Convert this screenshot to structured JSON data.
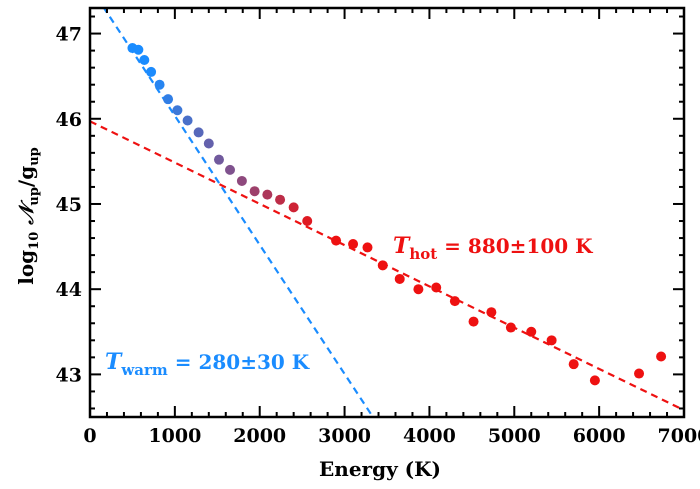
{
  "chart_data": {
    "type": "scatter",
    "xlabel": "Energy (K)",
    "ylabel": {
      "prefix": "log",
      "log_sub": "10",
      "script_n": "𝒩",
      "n_sub": "up",
      "slash": "/g",
      "g_sub": "up"
    },
    "xlim": [
      0,
      7000
    ],
    "ylim": [
      42.5,
      47.3
    ],
    "x_ticks": [
      0,
      1000,
      2000,
      3000,
      4000,
      5000,
      6000,
      7000
    ],
    "y_ticks": [
      43,
      44,
      45,
      46,
      47
    ],
    "grid": false,
    "points": [
      {
        "x": 500,
        "y": 46.83
      },
      {
        "x": 570,
        "y": 46.81
      },
      {
        "x": 640,
        "y": 46.69
      },
      {
        "x": 720,
        "y": 46.55
      },
      {
        "x": 820,
        "y": 46.4
      },
      {
        "x": 920,
        "y": 46.23
      },
      {
        "x": 1030,
        "y": 46.1
      },
      {
        "x": 1150,
        "y": 45.98
      },
      {
        "x": 1280,
        "y": 45.84
      },
      {
        "x": 1400,
        "y": 45.71
      },
      {
        "x": 1520,
        "y": 45.52
      },
      {
        "x": 1650,
        "y": 45.4
      },
      {
        "x": 1790,
        "y": 45.27
      },
      {
        "x": 1940,
        "y": 45.15
      },
      {
        "x": 2090,
        "y": 45.11
      },
      {
        "x": 2240,
        "y": 45.05
      },
      {
        "x": 2400,
        "y": 44.96
      },
      {
        "x": 2560,
        "y": 44.8
      },
      {
        "x": 2900,
        "y": 44.57
      },
      {
        "x": 3100,
        "y": 44.53
      },
      {
        "x": 3270,
        "y": 44.49
      },
      {
        "x": 3450,
        "y": 44.28
      },
      {
        "x": 3650,
        "y": 44.12
      },
      {
        "x": 3870,
        "y": 44.0
      },
      {
        "x": 4080,
        "y": 44.02
      },
      {
        "x": 4300,
        "y": 43.86
      },
      {
        "x": 4520,
        "y": 43.62
      },
      {
        "x": 4730,
        "y": 43.73
      },
      {
        "x": 4960,
        "y": 43.55
      },
      {
        "x": 5200,
        "y": 43.5
      },
      {
        "x": 5440,
        "y": 43.4
      },
      {
        "x": 5700,
        "y": 43.12
      },
      {
        "x": 5950,
        "y": 42.93
      },
      {
        "x": 6470,
        "y": 43.01
      },
      {
        "x": 6730,
        "y": 43.21
      }
    ],
    "color_gradient": {
      "start": "#1a8cff",
      "end": "#ee1111",
      "x_range": [
        700,
        2700
      ]
    },
    "fits": [
      {
        "name": "warm",
        "color": "#1a8cff",
        "x": [
          0,
          3400
        ],
        "y": [
          47.55,
          42.4
        ],
        "label_symbol": "T",
        "label_sub": "warm",
        "label_value": " = 280±30 K"
      },
      {
        "name": "hot",
        "color": "#ee1111",
        "x": [
          0,
          7000
        ],
        "y": [
          45.97,
          42.58
        ],
        "label_symbol": "T",
        "label_sub": "hot",
        "label_value": " = 880±100 K"
      }
    ]
  }
}
